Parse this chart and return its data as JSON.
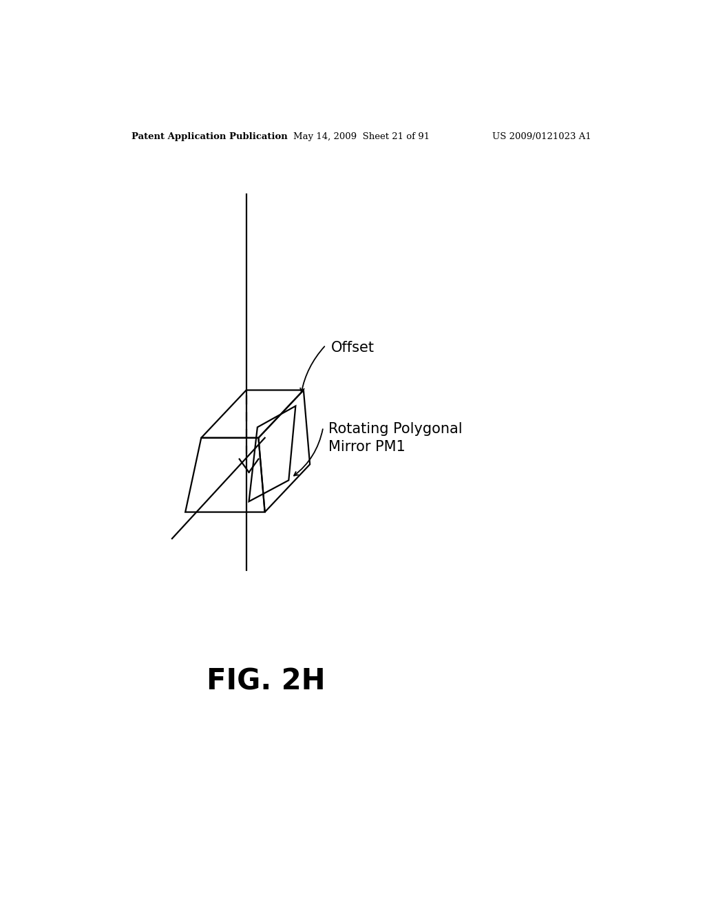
{
  "background_color": "#ffffff",
  "header_left": "Patent Application Publication",
  "header_center": "May 14, 2009  Sheet 21 of 91",
  "header_right": "US 2009/0121023 A1",
  "header_fontsize": 9.5,
  "figure_label": "FIG. 2H",
  "figure_label_fontsize": 30,
  "label_offset": "Offset",
  "label_mirror": "Rotating Polygonal\nMirror PM1",
  "label_fontsize": 15,
  "line_color": "#000000",
  "line_width": 1.6
}
